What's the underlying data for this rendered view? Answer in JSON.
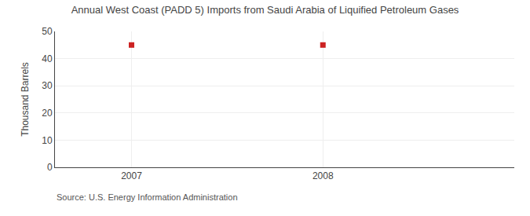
{
  "chart_data": {
    "type": "scatter",
    "title": "Annual West Coast (PADD 5) Imports from Saudi Arabia of Liquified Petroleum Gases",
    "ylabel": "Thousand Barrels",
    "annotations": [
      "Source: U.S. Energy Information Administration"
    ],
    "x": [
      2007,
      2008
    ],
    "values": [
      45,
      45
    ],
    "color": "#cc2222",
    "marker": "square",
    "xlim": [
      2006.6,
      2009.0
    ],
    "ylim": [
      0,
      50
    ],
    "xticks": [
      2007,
      2008
    ],
    "yticks": [
      0,
      10,
      20,
      30,
      40,
      50
    ],
    "grid": true
  }
}
